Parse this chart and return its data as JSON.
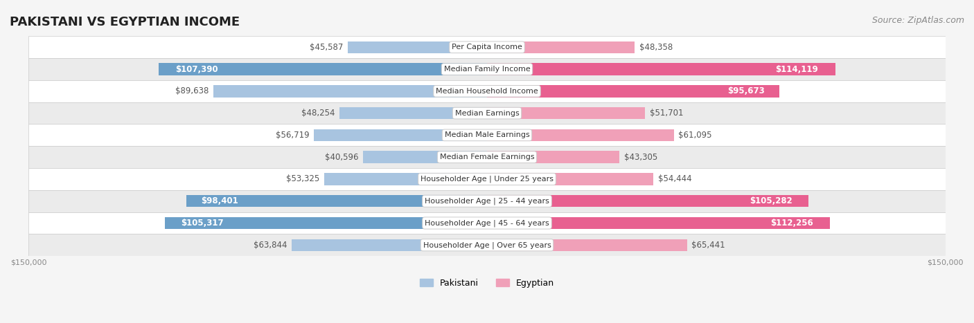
{
  "title": "PAKISTANI VS EGYPTIAN INCOME",
  "source": "Source: ZipAtlas.com",
  "categories": [
    "Per Capita Income",
    "Median Family Income",
    "Median Household Income",
    "Median Earnings",
    "Median Male Earnings",
    "Median Female Earnings",
    "Householder Age | Under 25 years",
    "Householder Age | 25 - 44 years",
    "Householder Age | 45 - 64 years",
    "Householder Age | Over 65 years"
  ],
  "pakistani_values": [
    45587,
    107390,
    89638,
    48254,
    56719,
    40596,
    53325,
    98401,
    105317,
    63844
  ],
  "egyptian_values": [
    48358,
    114119,
    95673,
    51701,
    61095,
    43305,
    54444,
    105282,
    112256,
    65441
  ],
  "pakistani_labels": [
    "$45,587",
    "$107,390",
    "$89,638",
    "$48,254",
    "$56,719",
    "$40,596",
    "$53,325",
    "$98,401",
    "$105,317",
    "$63,844"
  ],
  "egyptian_labels": [
    "$48,358",
    "$114,119",
    "$95,673",
    "$51,701",
    "$61,095",
    "$43,305",
    "$54,444",
    "$105,282",
    "$112,256",
    "$65,441"
  ],
  "max_value": 150000,
  "pakistani_color_light": "#a8c4e0",
  "pakistani_color_dark": "#6b9fc8",
  "egyptian_color_light": "#f0a0b8",
  "egyptian_color_dark": "#e86090",
  "background_color": "#f5f5f5",
  "row_bg_color": "#ffffff",
  "row_alt_bg_color": "#f0f0f0",
  "label_threshold": 90000,
  "title_fontsize": 13,
  "source_fontsize": 9,
  "bar_label_fontsize": 8.5,
  "category_fontsize": 8,
  "axis_label_fontsize": 8
}
